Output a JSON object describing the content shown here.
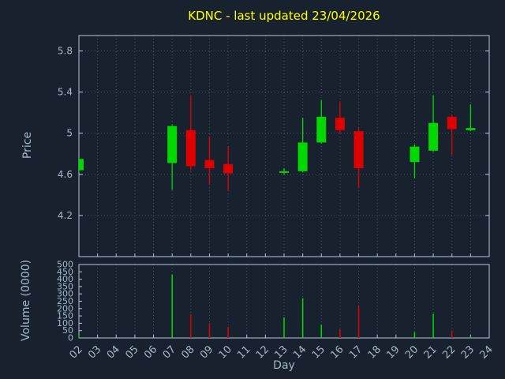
{
  "colors": {
    "background": "#18222f",
    "text": "#a5b8cb",
    "title": "#ffff00",
    "grid": "#4a5a6c",
    "frame": "#b8c8d8",
    "up": "#00d800",
    "down": "#e00000"
  },
  "labels": {
    "title": "KDNC - last updated 23/04/2026",
    "xlabel": "Day",
    "ylabel": "Price",
    "volume_label": "Volume (0000)"
  },
  "chart_data": {
    "type": "candlestick",
    "title": "KDNC - last updated 23/04/2026",
    "xlabel": "Day",
    "ylabel": "Price",
    "y2label": "Volume (0000)",
    "grid": true,
    "x_ticks": [
      "02",
      "03",
      "04",
      "05",
      "06",
      "07",
      "08",
      "09",
      "10",
      "11",
      "12",
      "13",
      "14",
      "15",
      "16",
      "17",
      "18",
      "19",
      "20",
      "21",
      "22",
      "23",
      "24"
    ],
    "price_ticks": {
      "values": [
        5.8,
        5.4,
        5.0,
        4.6,
        4.2
      ],
      "labels": [
        "5.8",
        "5.4",
        "5",
        "4.6",
        "4.2"
      ]
    },
    "price_range": [
      3.8,
      5.95
    ],
    "volume_ticks": {
      "values": [
        0,
        50,
        100,
        150,
        200,
        250,
        300,
        350,
        400,
        450,
        500
      ],
      "labels": [
        "0",
        "50",
        "100",
        "150",
        "200",
        "250",
        "300",
        "350",
        "400",
        "450",
        "500"
      ]
    },
    "volume_range": [
      0,
      500
    ],
    "candles": [
      {
        "day": "02",
        "open": 4.64,
        "high": 4.76,
        "low": 4.62,
        "close": 4.75,
        "volume": 20
      },
      {
        "day": "07",
        "open": 4.71,
        "high": 5.08,
        "low": 4.45,
        "close": 5.07,
        "volume": 430
      },
      {
        "day": "08",
        "open": 5.03,
        "high": 5.37,
        "low": 4.64,
        "close": 4.68,
        "volume": 160
      },
      {
        "day": "09",
        "open": 4.74,
        "high": 4.97,
        "low": 4.5,
        "close": 4.66,
        "volume": 100
      },
      {
        "day": "10",
        "open": 4.7,
        "high": 4.87,
        "low": 4.44,
        "close": 4.61,
        "volume": 75
      },
      {
        "day": "13",
        "open": 4.62,
        "high": 4.66,
        "low": 4.6,
        "close": 4.63,
        "volume": 140
      },
      {
        "day": "14",
        "open": 4.63,
        "high": 5.15,
        "low": 4.62,
        "close": 4.91,
        "volume": 270
      },
      {
        "day": "15",
        "open": 4.91,
        "high": 5.32,
        "low": 4.9,
        "close": 5.16,
        "volume": 90
      },
      {
        "day": "16",
        "open": 5.15,
        "high": 5.31,
        "low": 5.0,
        "close": 5.03,
        "volume": 60
      },
      {
        "day": "17",
        "open": 5.02,
        "high": 5.05,
        "low": 4.47,
        "close": 4.66,
        "volume": 215
      },
      {
        "day": "20",
        "open": 4.72,
        "high": 4.89,
        "low": 4.56,
        "close": 4.87,
        "volume": 40
      },
      {
        "day": "21",
        "open": 4.83,
        "high": 5.37,
        "low": 4.82,
        "close": 5.1,
        "volume": 165
      },
      {
        "day": "22",
        "open": 5.16,
        "high": 5.18,
        "low": 4.79,
        "close": 5.04,
        "volume": 50
      },
      {
        "day": "23",
        "open": 5.03,
        "high": 5.28,
        "low": 5.02,
        "close": 5.05,
        "volume": 10
      }
    ]
  }
}
